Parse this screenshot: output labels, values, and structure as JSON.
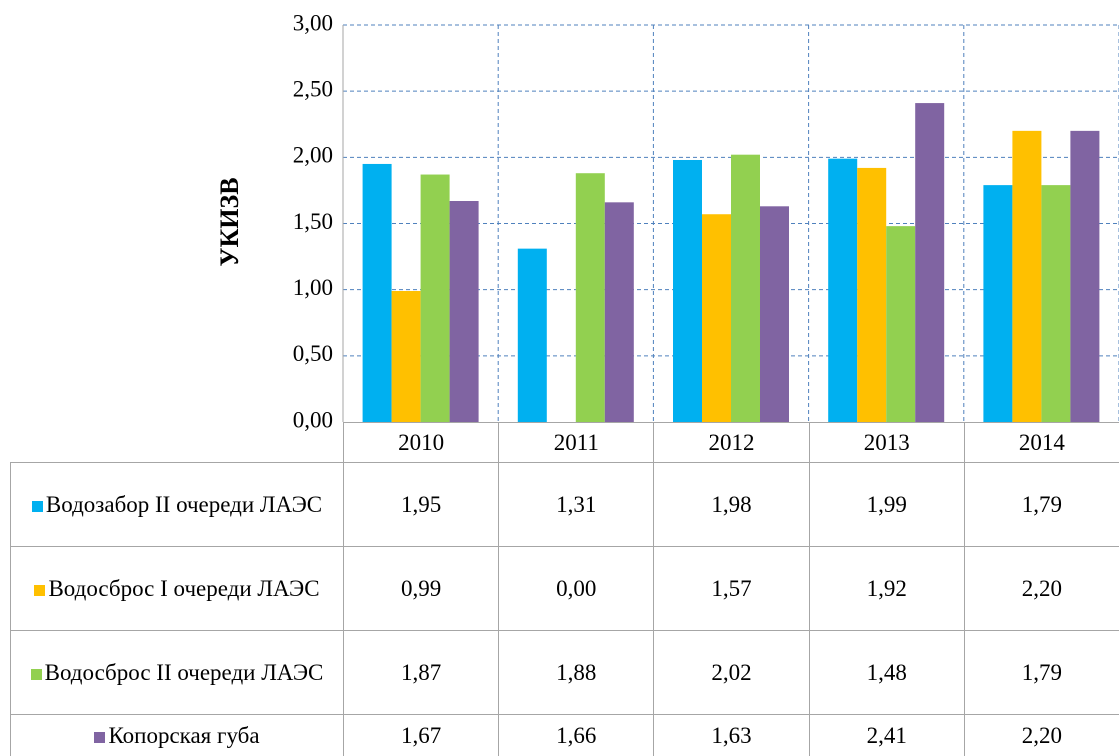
{
  "chart_data": {
    "type": "bar",
    "y_label": "УКИЗВ",
    "categories": [
      "2010",
      "2011",
      "2012",
      "2013",
      "2014"
    ],
    "series": [
      {
        "name": "Водозабор II очереди ЛАЭС",
        "color": "#00b0f0",
        "values": [
          1.95,
          1.31,
          1.98,
          1.99,
          1.79
        ],
        "value_labels": [
          "1,95",
          "1,31",
          "1,98",
          "1,99",
          "1,79"
        ]
      },
      {
        "name": "Водосброс I очереди ЛАЭС",
        "color": "#ffc000",
        "values": [
          0.99,
          0.0,
          1.57,
          1.92,
          2.2
        ],
        "value_labels": [
          "0,99",
          "0,00",
          "1,57",
          "1,92",
          "2,20"
        ]
      },
      {
        "name": "Водосброс II очереди ЛАЭС",
        "color": "#92d050",
        "values": [
          1.87,
          1.88,
          2.02,
          1.48,
          1.79
        ],
        "value_labels": [
          "1,87",
          "1,88",
          "2,02",
          "1,48",
          "1,79"
        ]
      },
      {
        "name": "Копорская губа",
        "color": "#8064a2",
        "values": [
          1.67,
          1.66,
          1.63,
          2.41,
          2.2
        ],
        "value_labels": [
          "1,67",
          "1,66",
          "1,63",
          "2,41",
          "2,20"
        ]
      }
    ],
    "ylim": [
      0,
      3
    ],
    "yticks": [
      {
        "value": 0,
        "label": "0,00"
      },
      {
        "value": 0.5,
        "label": "0,50"
      },
      {
        "value": 1,
        "label": "1,00"
      },
      {
        "value": 1.5,
        "label": "1,50"
      },
      {
        "value": 2,
        "label": "2,00"
      },
      {
        "value": 2.5,
        "label": "2,50"
      },
      {
        "value": 3,
        "label": "3,00"
      }
    ],
    "grid": true
  }
}
